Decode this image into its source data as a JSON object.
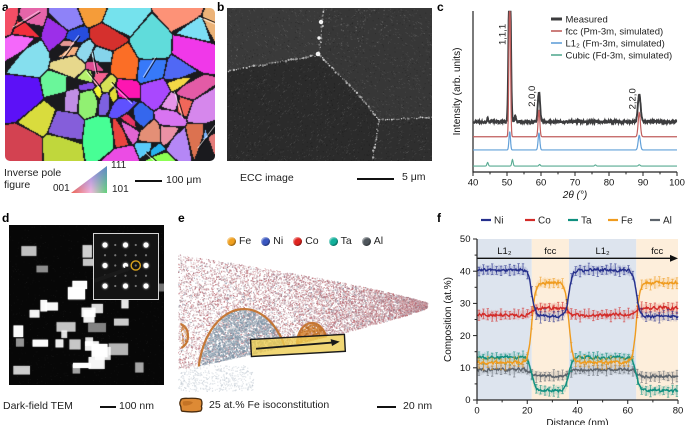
{
  "panels": {
    "a": {
      "label": "a",
      "caption": "Inverse pole\nfigure",
      "ipf_triangle": {
        "corner_111": "111",
        "corner_001": "001",
        "corner_101": "101"
      },
      "scalebar": "100 μm",
      "boundary_color": "#1a1a1c"
    },
    "b": {
      "label": "b",
      "caption": "ECC image",
      "scalebar": "5 μm",
      "background": "#313131"
    },
    "c": {
      "label": "c"
    },
    "d": {
      "label": "d",
      "caption": "Dark-field TEM",
      "scalebar": "100 nm",
      "background": "#070707",
      "spot_circle_color": "#d8a21c"
    },
    "e": {
      "label": "e",
      "legend": [
        {
          "label": "Fe",
          "color": "#f0a01f"
        },
        {
          "label": "Ni",
          "color": "#3a57c0"
        },
        {
          "label": "Co",
          "color": "#e0241f"
        },
        {
          "label": "Ta",
          "color": "#12b09b"
        },
        {
          "label": "Al",
          "color": "#4f565c"
        }
      ],
      "iso_caption": "25 at.% Fe isoconstitution",
      "iso_color": "#dd8a35",
      "iso_outline_color": "#c2702a",
      "matrix_color": "#c09aa2",
      "precipitate_color": "#93a7b8",
      "roi_color": "#eecd53",
      "scalebar": "20 nm"
    },
    "f": {
      "label": "f"
    }
  },
  "chart_data": [
    {
      "panel": "c",
      "type": "line",
      "title": "",
      "xlabel": "2θ (°)",
      "ylabel": "Intensity (arb. units)",
      "xlim": [
        40,
        100
      ],
      "xticks": [
        40,
        50,
        60,
        70,
        80,
        90,
        100
      ],
      "minor_tick_step": 5,
      "legend_position": "top-right",
      "peak_labels": [
        {
          "text": "1,1,1",
          "x": 50.8
        },
        {
          "text": "2,0,0",
          "x": 59.4
        },
        {
          "text": "2,2,0",
          "x": 88.9
        }
      ],
      "series": [
        {
          "name": "Measured",
          "color": "#3c3c3e",
          "width": 1.9,
          "offset": 0.312,
          "noise": 0.007,
          "peaks": [
            {
              "x": 50.8,
              "h": 1.1,
              "w": 0.3
            },
            {
              "x": 52.4,
              "h": 0.035,
              "w": 0.22
            },
            {
              "x": 44.3,
              "h": 0.02,
              "w": 0.2
            },
            {
              "x": 59.4,
              "h": 0.186,
              "w": 0.32
            },
            {
              "x": 88.9,
              "h": 0.17,
              "w": 0.4
            }
          ]
        },
        {
          "name": "fcc (Pm-3m, simulated)",
          "color": "#c05d5c",
          "width": 1.2,
          "offset": 0.219,
          "noise": 0,
          "peaks": [
            {
              "x": 50.8,
              "h": 0.95,
              "w": 0.22
            },
            {
              "x": 59.4,
              "h": 0.166,
              "w": 0.25
            },
            {
              "x": 88.9,
              "h": 0.15,
              "w": 0.32
            }
          ]
        },
        {
          "name": "L1₂ (Fm-3m, simulated)",
          "color": "#62a0d8",
          "width": 1.2,
          "offset": 0.137,
          "noise": 0,
          "peaks": [
            {
              "x": 50.8,
              "h": 0.114,
              "w": 0.22
            },
            {
              "x": 59.4,
              "h": 0.105,
              "w": 0.25
            },
            {
              "x": 88.9,
              "h": 0.09,
              "w": 0.32
            }
          ]
        },
        {
          "name": "Cubic (Fd-3m, simulated)",
          "color": "#57ab92",
          "width": 1.1,
          "offset": 0.037,
          "noise": 0,
          "peaks": [
            {
              "x": 44.3,
              "h": 0.022,
              "w": 0.2
            },
            {
              "x": 51.6,
              "h": 0.04,
              "w": 0.2
            },
            {
              "x": 59.6,
              "h": 0.01,
              "w": 0.2
            },
            {
              "x": 76.0,
              "h": 0.007,
              "w": 0.2
            },
            {
              "x": 88.9,
              "h": 0.008,
              "w": 0.25
            }
          ]
        }
      ]
    },
    {
      "panel": "f",
      "type": "line",
      "title": "",
      "xlabel": "Distance (nm)",
      "ylabel": "Composition (at.%)",
      "xlim": [
        0,
        80
      ],
      "ylim": [
        0,
        50
      ],
      "xticks": [
        0,
        20,
        40,
        60,
        80
      ],
      "yticks": [
        0,
        10,
        20,
        30,
        40,
        50
      ],
      "minor_x": [
        10,
        30,
        50,
        70
      ],
      "minor_y": [
        5,
        15,
        25,
        35,
        45
      ],
      "arrow_y": 44,
      "phase_boundaries": [
        21.8,
        36.6,
        63.4
      ],
      "transition_width": 0.7,
      "regions": [
        {
          "label": "L1₂",
          "start": 0,
          "end": 21.8,
          "phase": "L12",
          "bg": "#dde4ee",
          "label_x": 10.9
        },
        {
          "label": "fcc",
          "start": 21.8,
          "end": 36.6,
          "phase": "fcc",
          "bg": "#fdeedb",
          "label_x": 29.2
        },
        {
          "label": "L1₂",
          "start": 36.6,
          "end": 63.4,
          "phase": "L12",
          "bg": "#dde4ee",
          "label_x": 50.0
        },
        {
          "label": "fcc",
          "start": 63.4,
          "end": 80,
          "phase": "fcc",
          "bg": "#fdeedb",
          "label_x": 71.7
        }
      ],
      "series": [
        {
          "name": "Ni",
          "color": "#252f8c",
          "L12": 40.3,
          "fcc": 26.0
        },
        {
          "name": "Co",
          "color": "#d32b28",
          "L12": 26.4,
          "fcc": 28.6
        },
        {
          "name": "Ta",
          "color": "#0f8f7f",
          "L12": 13.2,
          "fcc": 2.9
        },
        {
          "name": "Fe",
          "color": "#ef9b1e",
          "L12": 11.6,
          "fcc": 36.4
        },
        {
          "name": "Al",
          "color": "#5d646c",
          "L12": 9.4,
          "fcc": 7.4
        }
      ]
    }
  ]
}
